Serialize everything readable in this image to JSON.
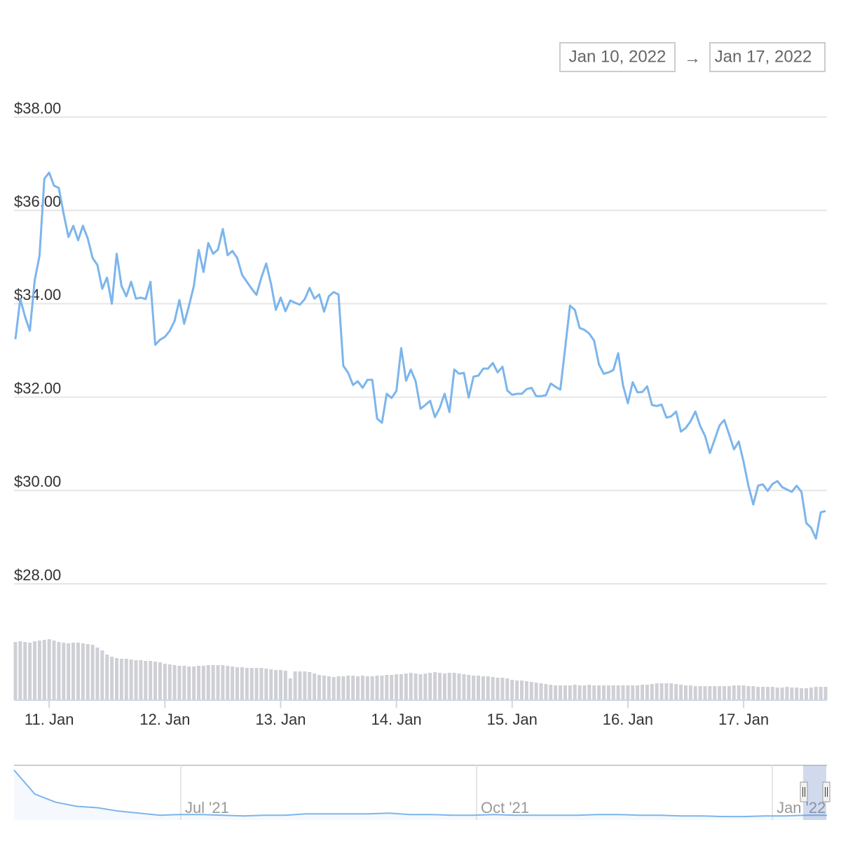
{
  "chart_data": {
    "type": "line",
    "range_selector": {
      "from": "Jan 10, 2022",
      "separator": "→",
      "to": "Jan 17, 2022"
    },
    "grid": true,
    "x": [
      17,
      18,
      19,
      20,
      21,
      22,
      23,
      24,
      25,
      26,
      27,
      28,
      29,
      30,
      31,
      32,
      33,
      34,
      35,
      36,
      37,
      38,
      39,
      40,
      41,
      42,
      43,
      44,
      45,
      46,
      47,
      48,
      49,
      50,
      51,
      52,
      53,
      54,
      55,
      56,
      57,
      58,
      59,
      60,
      61,
      62,
      63,
      64,
      65,
      66,
      67,
      68,
      69,
      70,
      71,
      72,
      73,
      74,
      75,
      76,
      77,
      78,
      79,
      80,
      81,
      82,
      83,
      84,
      85,
      86,
      87,
      88,
      89,
      90,
      91,
      92,
      93,
      94,
      95,
      96,
      97,
      98,
      99,
      100,
      101,
      102,
      103,
      104,
      105,
      106,
      107,
      108,
      109,
      110,
      111,
      112,
      113,
      114,
      115,
      116,
      117,
      118,
      119,
      120,
      121,
      122,
      123,
      124,
      125,
      126,
      127,
      128,
      129,
      130,
      131,
      132,
      133,
      134,
      135,
      136,
      137,
      138,
      139,
      140,
      141,
      142,
      143,
      144,
      145,
      146,
      147,
      148,
      149,
      150,
      151,
      152,
      153,
      154,
      155,
      156,
      157,
      158,
      159,
      160,
      161,
      162,
      163,
      164,
      165,
      166,
      167,
      168,
      169,
      170,
      171,
      172,
      173,
      174,
      175,
      176,
      177,
      178,
      179,
      180,
      181,
      182,
      183,
      184,
      185
    ],
    "xlim": [
      17,
      185
    ],
    "xticks": [
      {
        "value": 24,
        "label": "11. Jan"
      },
      {
        "value": 48,
        "label": "12. Jan"
      },
      {
        "value": 72,
        "label": "13. Jan"
      },
      {
        "value": 96,
        "label": "14. Jan"
      },
      {
        "value": 120,
        "label": "15. Jan"
      },
      {
        "value": 144,
        "label": "16. Jan"
      },
      {
        "value": 168,
        "label": "17. Jan"
      }
    ],
    "ylim": [
      28,
      38
    ],
    "yticks": [
      {
        "value": 28,
        "label": "$28.00"
      },
      {
        "value": 30,
        "label": "$30.00"
      },
      {
        "value": 32,
        "label": "$32.00"
      },
      {
        "value": 34,
        "label": "$34.00"
      },
      {
        "value": 36,
        "label": "$36.00"
      },
      {
        "value": 38,
        "label": "$38.00"
      }
    ],
    "series": [
      {
        "color": "#7cb5ec",
        "values": [
          33.24,
          34.1,
          33.72,
          33.42,
          34.5,
          35.03,
          36.68,
          36.81,
          36.53,
          36.48,
          35.93,
          35.43,
          35.67,
          35.36,
          35.67,
          35.4,
          34.98,
          34.83,
          34.32,
          34.56,
          34.0,
          35.07,
          34.38,
          34.16,
          34.47,
          34.11,
          34.13,
          34.1,
          34.47,
          33.12,
          33.23,
          33.29,
          33.42,
          33.63,
          34.08,
          33.57,
          33.96,
          34.38,
          35.15,
          34.68,
          35.3,
          35.07,
          35.16,
          35.6,
          35.04,
          35.13,
          34.98,
          34.62,
          34.47,
          34.32,
          34.19,
          34.56,
          34.86,
          34.43,
          33.87,
          34.13,
          33.84,
          34.07,
          34.02,
          33.98,
          34.1,
          34.34,
          34.11,
          34.2,
          33.83,
          34.16,
          34.25,
          34.2,
          32.67,
          32.52,
          32.26,
          32.34,
          32.2,
          32.37,
          32.37,
          31.54,
          31.45,
          32.07,
          31.98,
          32.13,
          33.05,
          32.35,
          32.59,
          32.34,
          31.75,
          31.83,
          31.92,
          31.57,
          31.77,
          32.07,
          31.68,
          32.59,
          32.5,
          32.52,
          31.99,
          32.44,
          32.46,
          32.61,
          32.61,
          32.73,
          32.53,
          32.65,
          32.14,
          32.05,
          32.07,
          32.07,
          32.17,
          32.2,
          32.02,
          32.02,
          32.04,
          32.29,
          32.22,
          32.16,
          33.05,
          33.96,
          33.87,
          33.48,
          33.44,
          33.36,
          33.21,
          32.7,
          32.5,
          32.53,
          32.58,
          32.94,
          32.25,
          31.87,
          32.32,
          32.1,
          32.11,
          32.23,
          31.83,
          31.81,
          31.84,
          31.56,
          31.59,
          31.69,
          31.26,
          31.34,
          31.48,
          31.69,
          31.38,
          31.17,
          30.8,
          31.09,
          31.39,
          31.51,
          31.2,
          30.88,
          31.05,
          30.61,
          30.1,
          29.7,
          30.1,
          30.13,
          29.99,
          30.14,
          30.2,
          30.07,
          30.02,
          29.97,
          30.1,
          29.97,
          29.3,
          29.2,
          28.97,
          29.53,
          29.56
        ]
      }
    ],
    "volume": {
      "color": "#cfd0d6",
      "ylim": [
        0,
        100
      ],
      "values": [
        82,
        83,
        82,
        81,
        83,
        84,
        85,
        86,
        84,
        82,
        81,
        80,
        81,
        81,
        80,
        79,
        78,
        74,
        70,
        64,
        61,
        59,
        58,
        58,
        57,
        56,
        56,
        55,
        55,
        54,
        53,
        51,
        50,
        49,
        48,
        48,
        47,
        47,
        48,
        48,
        49,
        49,
        49,
        49,
        48,
        47,
        46,
        46,
        45,
        45,
        45,
        45,
        44,
        43,
        42,
        42,
        41,
        30,
        40,
        40,
        40,
        39,
        37,
        35,
        34,
        33,
        32,
        33,
        33,
        34,
        34,
        33,
        34,
        33,
        33,
        34,
        34,
        35,
        35,
        36,
        36,
        37,
        38,
        37,
        36,
        37,
        38,
        39,
        38,
        37,
        38,
        38,
        37,
        36,
        35,
        34,
        34,
        33,
        33,
        32,
        31,
        31,
        30,
        28,
        27,
        27,
        26,
        25,
        24,
        23,
        22,
        21,
        20,
        20,
        20,
        20,
        21,
        20,
        20,
        21,
        20,
        20,
        20,
        20,
        20,
        20,
        20,
        20,
        20,
        20,
        21,
        21,
        22,
        23,
        23,
        23,
        23,
        22,
        21,
        20,
        20,
        19,
        19,
        19,
        19,
        19,
        19,
        19,
        19,
        20,
        20,
        20,
        19,
        19,
        18,
        18,
        18,
        18,
        17,
        17,
        18,
        17,
        17,
        16,
        16,
        17,
        18,
        18,
        18
      ]
    },
    "navigator": {
      "color": "#7cb5ec",
      "xlim": [
        0,
        39
      ],
      "ylim": [
        0,
        80
      ],
      "xticks": [
        {
          "value": 8.0,
          "label": "Jul '21"
        },
        {
          "value": 22.19,
          "label": "Oct '21"
        },
        {
          "value": 36.38,
          "label": "Jan '22"
        }
      ],
      "values": [
        73,
        38,
        26,
        20,
        18,
        13,
        10,
        7,
        8,
        8,
        7,
        6,
        7,
        7,
        9,
        9,
        9,
        9,
        10,
        8,
        8,
        7,
        7,
        8,
        7,
        7,
        7,
        7,
        8,
        8,
        7,
        7,
        6,
        6,
        5,
        5,
        6,
        6,
        7,
        7
      ]
    }
  }
}
